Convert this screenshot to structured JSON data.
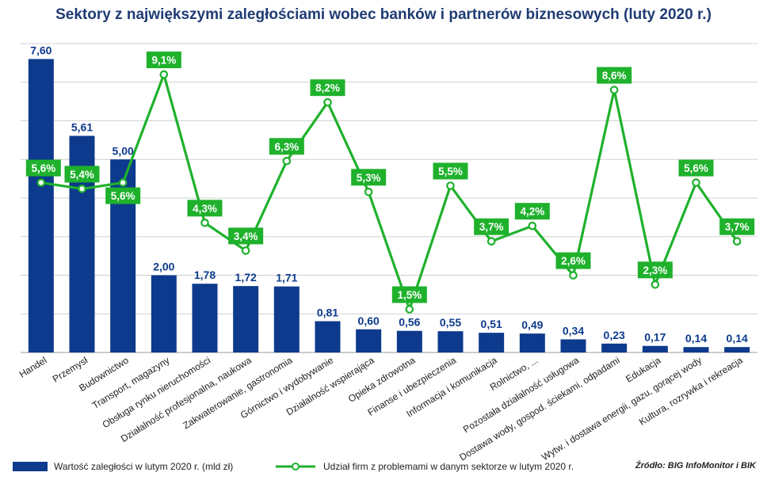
{
  "title": "Sektory z największymi zaległościami wobec banków i partnerów biznesowych (luty 2020 r.)",
  "colors": {
    "bar": "#0d3a8c",
    "line": "#1fb12c",
    "label_text_bar": "#0d3a8c",
    "label_box_line": "#1fb12c",
    "grid": "#d0d0d0"
  },
  "legend": {
    "bar_label": "Wartość zaległości w lutym 2020 r. (mld zł)",
    "line_label": "Udział firm z problemami w danym sektorze w lutym 2020 r.",
    "source": "Źródło: BIG InfoMonitor i BIK"
  },
  "chart_data": {
    "type": "bar",
    "categories": [
      "Handel",
      "Przemysł",
      "Budownictwo",
      "Transport, magazyny",
      "Obsługa rynku nieruchomości",
      "Działalność profesjonalna, naukowa",
      "Zakwaterowanie, gastronomia",
      "Górnictwo i wydobywanie",
      "Działalność wspierająca",
      "Opieka zdrowotna",
      "Finanse i ubezpieczenia",
      "Informacja i komunikacja",
      "Rolnictwo, ...",
      "Pozostała działalność usługowa",
      "Dostawa wody, gospod. ściekami, odpadami",
      "Edukacja",
      "Wytw. i dostawa energii, gazu, gorącej wody",
      "Kultura, rozrywka i rekreacja"
    ],
    "series": [
      {
        "type": "bar",
        "values": [
          7.6,
          5.61,
          5.0,
          2.0,
          1.78,
          1.72,
          1.71,
          0.81,
          0.6,
          0.56,
          0.55,
          0.51,
          0.49,
          0.34,
          0.23,
          0.17,
          0.14,
          0.14
        ],
        "labels": [
          "7,60",
          "5,61",
          "5,00",
          "2,00",
          "1,78",
          "1,72",
          "1,71",
          "0,81",
          "0,60",
          "0,56",
          "0,55",
          "0,51",
          "0,49",
          "0,34",
          "0,23",
          "0,17",
          "0,14",
          "0,14"
        ]
      },
      {
        "type": "line",
        "values": [
          5.6,
          5.4,
          5.6,
          9.1,
          4.3,
          3.4,
          6.3,
          8.2,
          5.3,
          1.5,
          5.5,
          3.7,
          4.2,
          2.6,
          8.6,
          2.3,
          5.6,
          3.7
        ],
        "labels": [
          "5,6%",
          "5,4%",
          "5,6%",
          "9,1%",
          "4,3%",
          "3,4%",
          "6,3%",
          "8,2%",
          "5,3%",
          "1,5%",
          "5,5%",
          "3,7%",
          "4,2%",
          "2,6%",
          "8,6%",
          "2,3%",
          "5,6%",
          "3,7%"
        ]
      }
    ],
    "ylim_bar": [
      0,
      8
    ],
    "ylim_line": [
      0,
      10
    ],
    "grid": true,
    "legend_position": "bottom"
  }
}
